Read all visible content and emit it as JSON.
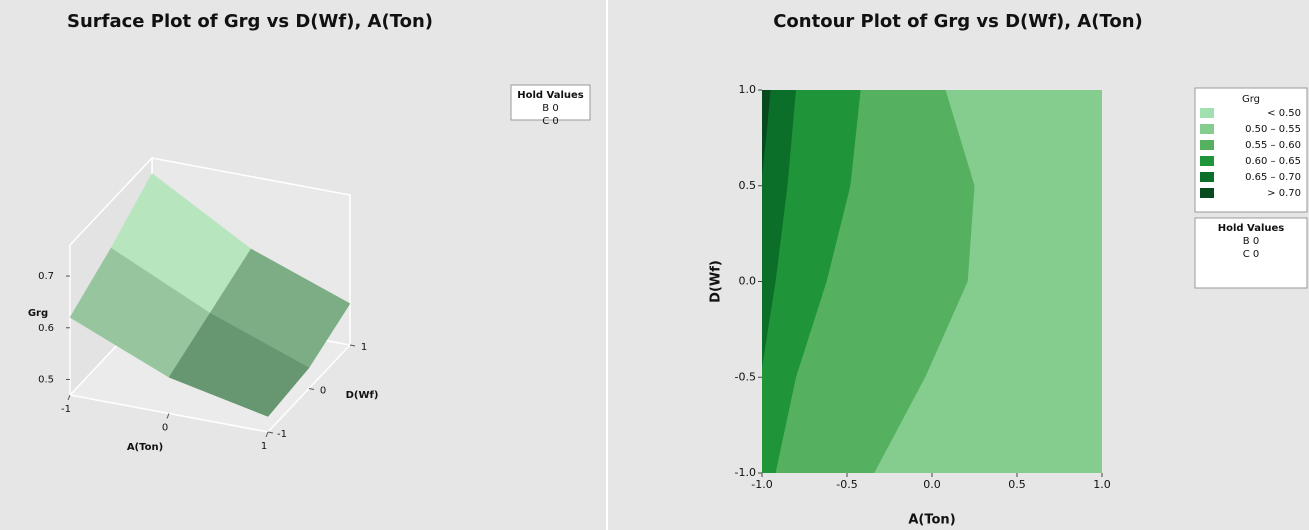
{
  "chart_data": [
    {
      "type": "surface",
      "title": "Surface Plot of Grg vs D(Wf), A(Ton)",
      "xlabel": "A(Ton)",
      "ylabel": "D(Wf)",
      "zlabel": "Grg",
      "x": [
        -1,
        0,
        1
      ],
      "y": [
        -1,
        0,
        1
      ],
      "z": [
        [
          0.62,
          0.67,
          0.73
        ],
        [
          0.54,
          0.58,
          0.62
        ],
        [
          0.5,
          0.51,
          0.55
        ]
      ],
      "xlim": [
        -1,
        1
      ],
      "ylim": [
        -1,
        1
      ],
      "zlim": [
        0.47,
        0.76
      ],
      "xticks": [
        -1,
        0,
        1
      ],
      "yticks": [
        -1,
        0,
        1
      ],
      "zticks": [
        0.5,
        0.6,
        0.7
      ],
      "hold_values": {
        "title": "Hold Values",
        "items": [
          "B 0",
          "C 0"
        ]
      }
    },
    {
      "type": "contour",
      "title": "Contour Plot of Grg vs D(Wf), A(Ton)",
      "xlabel": "A(Ton)",
      "ylabel": "D(Wf)",
      "xlim": [
        -1,
        1
      ],
      "ylim": [
        -1,
        1
      ],
      "xticks": [
        {
          "value": -1,
          "label": "-1.0"
        },
        -0.5,
        {
          "value": 0,
          "label": "0.0"
        },
        0.5,
        {
          "value": 1,
          "label": "1.0"
        }
      ],
      "yticks": [
        {
          "value": -1,
          "label": "-1.0"
        },
        -0.5,
        {
          "value": 0,
          "label": "0.0"
        },
        0.5,
        {
          "value": 1,
          "label": "1.0"
        }
      ],
      "base_color": "#84cd8f",
      "regions": [
        {
          "side": "left",
          "color": "#55b060",
          "x": [
            -0.34,
            -0.04,
            0.21,
            0.25,
            0.08
          ],
          "y": [
            -1,
            -0.5,
            0,
            0.5,
            1
          ]
        },
        {
          "side": "left",
          "color": "#1f9438",
          "x": [
            -0.92,
            -0.8,
            -0.62,
            -0.48,
            -0.42
          ],
          "y": [
            -1,
            -0.5,
            0,
            0.5,
            1
          ]
        },
        {
          "side": "left",
          "color": "#0b6f2a",
          "x": [
            -1,
            -0.92,
            -0.85,
            -0.8
          ],
          "y": [
            -0.45,
            0,
            0.5,
            1
          ]
        },
        {
          "side": "left",
          "color": "#064a1d",
          "x": [
            -1,
            -0.97,
            -0.95
          ],
          "y": [
            0.55,
            0.8,
            1
          ]
        },
        {
          "side": "right",
          "color": "#a3e0b0",
          "x": [
            0.97,
            1
          ],
          "y": [
            1,
            0.93
          ]
        }
      ],
      "legend": {
        "title": "Grg",
        "items": [
          {
            "label": "< 0.50",
            "color": "#a3e0b0"
          },
          {
            "label": "0.50 – 0.55",
            "color": "#84cd8f"
          },
          {
            "label": "0.55 – 0.60",
            "color": "#55b060"
          },
          {
            "label": "0.60 – 0.65",
            "color": "#1f9438"
          },
          {
            "label": "0.65 – 0.70",
            "color": "#0b6f2a"
          },
          {
            "label": "> 0.70",
            "color": "#064a1d"
          }
        ]
      },
      "hold_values": {
        "title": "Hold Values",
        "items": [
          "B 0",
          "C 0"
        ]
      }
    }
  ]
}
